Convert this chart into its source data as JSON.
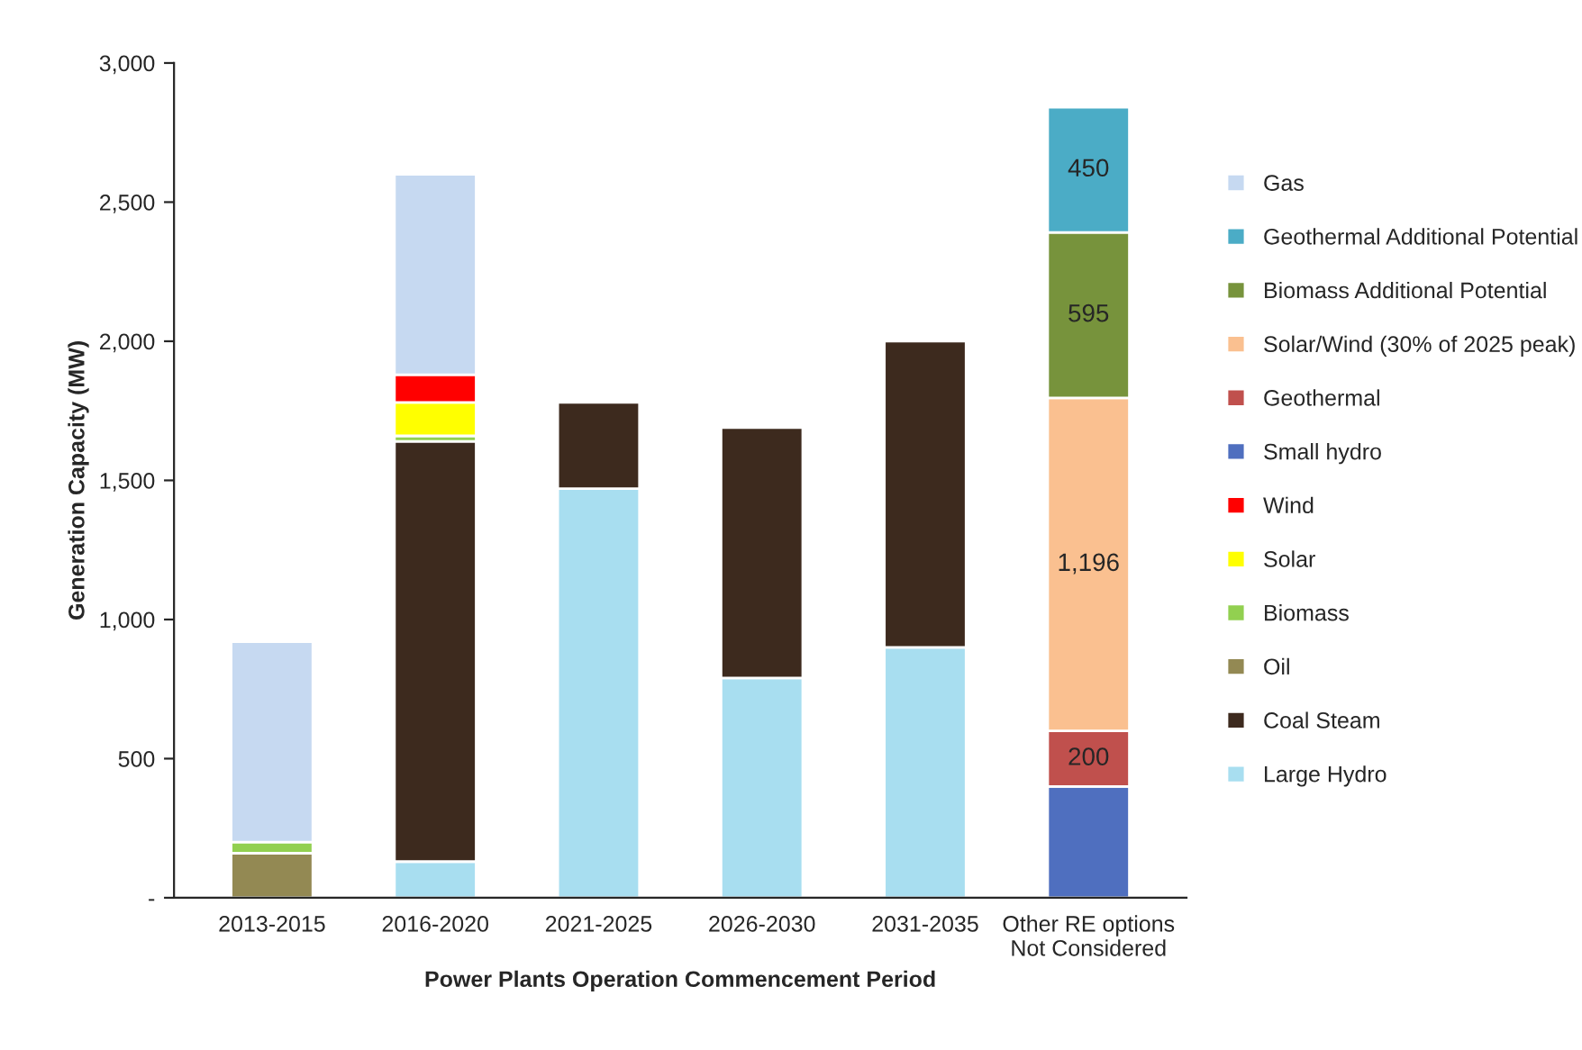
{
  "chart_data": {
    "type": "bar",
    "stacked": true,
    "xlabel": "Power Plants Operation Commencement Period",
    "ylabel": "Generation Capacity (MW)",
    "categories": [
      "2013-2015",
      "2016-2020",
      "2021-2025",
      "2026-2030",
      "2031-2035",
      "Other RE options\nNot Considered"
    ],
    "series": [
      {
        "name": "Large Hydro",
        "color": "#a8def0",
        "values": [
          null,
          130,
          1470,
          790,
          900,
          null
        ]
      },
      {
        "name": "Coal Steam",
        "color": "#3d2a1e",
        "values": [
          null,
          1510,
          310,
          900,
          1100,
          null
        ]
      },
      {
        "name": "Oil",
        "color": "#938953",
        "values": [
          160,
          null,
          null,
          null,
          null,
          null
        ]
      },
      {
        "name": "Biomass",
        "color": "#92d050",
        "values": [
          40,
          20,
          null,
          null,
          null,
          null
        ]
      },
      {
        "name": "Solar",
        "color": "#ffff00",
        "values": [
          null,
          120,
          null,
          null,
          null,
          null
        ]
      },
      {
        "name": "Wind",
        "color": "#ff0000",
        "values": [
          null,
          100,
          null,
          null,
          null,
          null
        ]
      },
      {
        "name": "Small hydro",
        "color": "#4f6fbf",
        "values": [
          null,
          null,
          null,
          null,
          null,
          400
        ]
      },
      {
        "name": "Geothermal",
        "color": "#c0504d",
        "values": [
          null,
          null,
          null,
          null,
          null,
          200
        ],
        "value_labels": [
          null,
          null,
          null,
          null,
          null,
          "200"
        ]
      },
      {
        "name": "Solar/Wind (30% of 2025 peak)",
        "color": "#fac090",
        "values": [
          null,
          null,
          null,
          null,
          null,
          1196
        ],
        "value_labels": [
          null,
          null,
          null,
          null,
          null,
          "1,196"
        ]
      },
      {
        "name": "Biomass Additional Potential",
        "color": "#77933c",
        "values": [
          null,
          null,
          null,
          null,
          null,
          595
        ],
        "value_labels": [
          null,
          null,
          null,
          null,
          null,
          "595"
        ]
      },
      {
        "name": "Geothermal Additional Potential",
        "color": "#4bacc6",
        "values": [
          null,
          null,
          null,
          null,
          null,
          450
        ],
        "value_labels": [
          null,
          null,
          null,
          null,
          null,
          "450"
        ]
      },
      {
        "name": "Gas",
        "color": "#c6d9f1",
        "values": [
          720,
          720,
          null,
          null,
          null,
          null
        ]
      }
    ],
    "ylim": [
      0,
      3000
    ],
    "yticks": [
      {
        "value": 0,
        "label": "-"
      },
      {
        "value": 500,
        "label": "500"
      },
      {
        "value": 1000,
        "label": "1,000"
      },
      {
        "value": 1500,
        "label": "1,500"
      },
      {
        "value": 2000,
        "label": "2,000"
      },
      {
        "value": 2500,
        "label": "2,500"
      },
      {
        "value": 3000,
        "label": "3,000"
      }
    ],
    "grid": false,
    "legend": "right"
  }
}
